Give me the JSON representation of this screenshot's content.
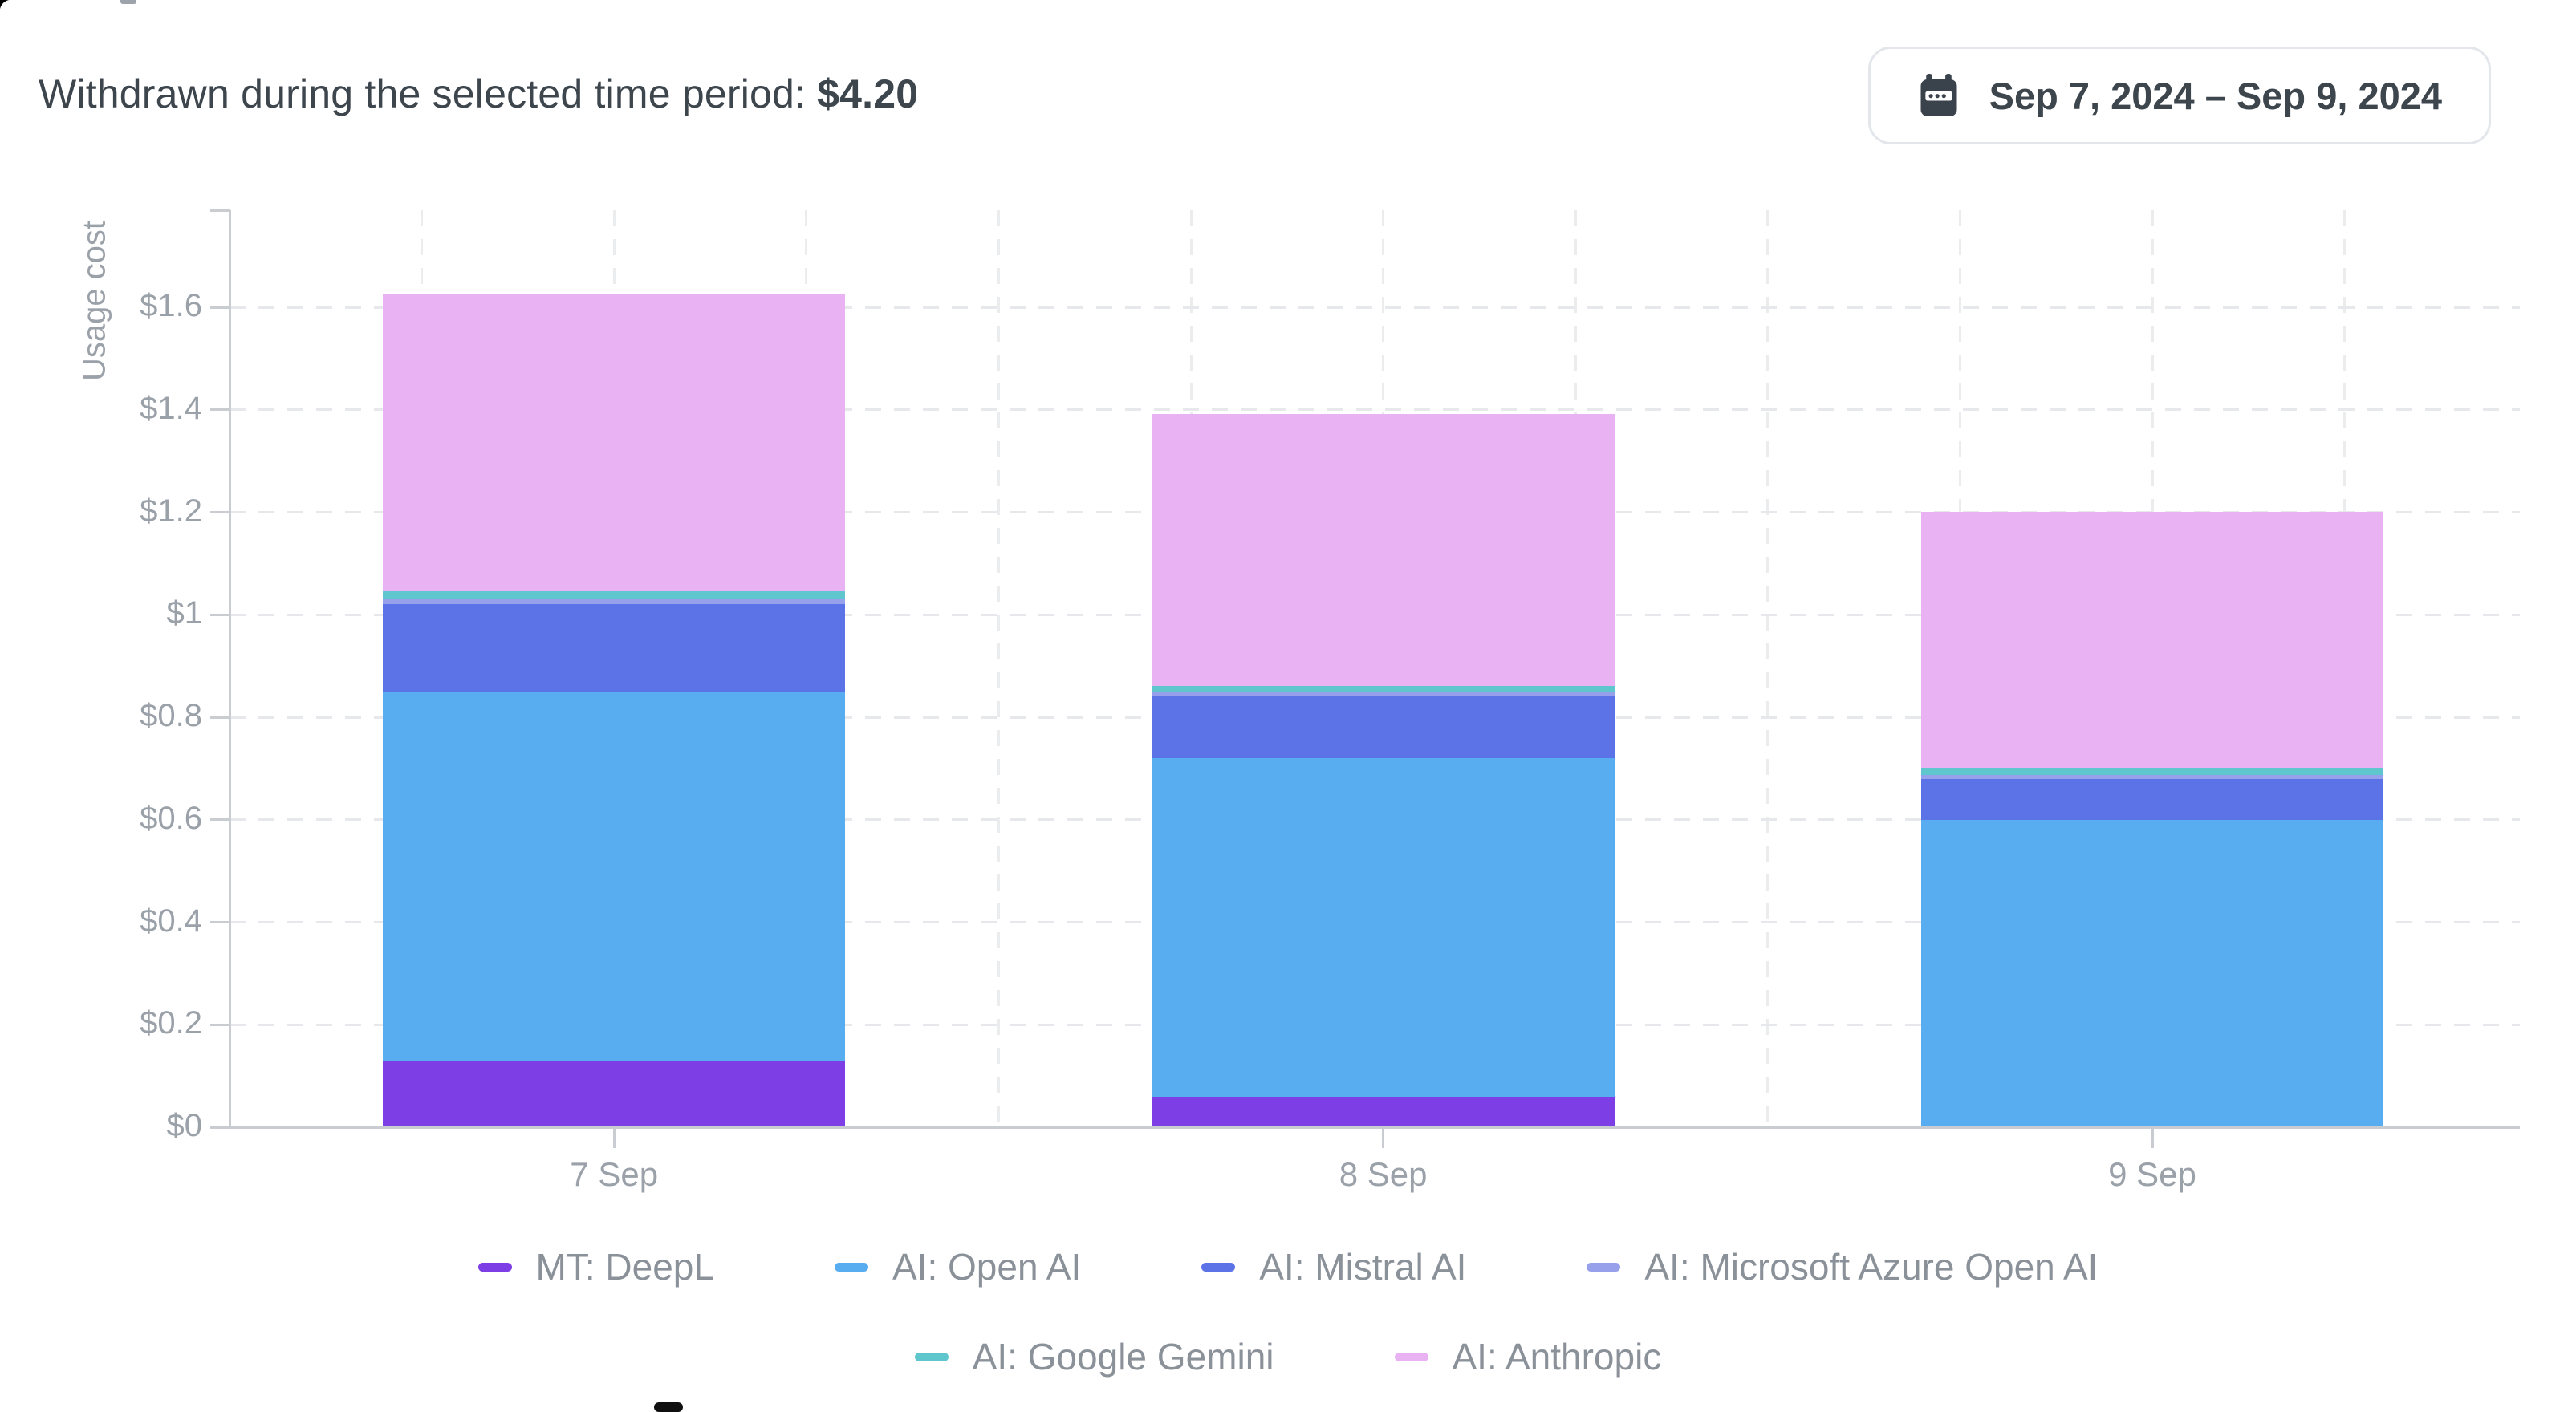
{
  "header": {
    "label": "Withdrawn during the selected time period:",
    "value": "$4.20"
  },
  "date_range": {
    "label": "Sep 7, 2024 – Sep 9, 2024",
    "icon": "calendar-icon"
  },
  "chart_data": {
    "type": "bar",
    "stacked": true,
    "title": "",
    "xlabel": "",
    "ylabel": "Usage cost",
    "categories": [
      "7 Sep",
      "8 Sep",
      "9 Sep"
    ],
    "series": [
      {
        "name": "MT: DeepL",
        "color": "#7d3ee6",
        "values": [
          0.13,
          0.06,
          0
        ]
      },
      {
        "name": "AI: Open AI",
        "color": "#58acf0",
        "values": [
          0.72,
          0.66,
          0.6
        ]
      },
      {
        "name": "AI: Mistral AI",
        "color": "#5b73e6",
        "values": [
          0.17,
          0.12,
          0.08
        ]
      },
      {
        "name": "AI: Microsoft Azure Open AI",
        "color": "#96a0eb",
        "values": [
          0.01,
          0.008,
          0.008
        ]
      },
      {
        "name": "AI: Google Gemini",
        "color": "#5fc6cd",
        "values": [
          0.015,
          0.013,
          0.014
        ]
      },
      {
        "name": "AI: Anthropic",
        "color": "#e9b2f3",
        "values": [
          0.58,
          0.53,
          0.5
        ]
      }
    ],
    "bar_totals": [
      1.62,
      1.39,
      1.2
    ],
    "y_ticks": [
      {
        "value": 0,
        "label": "$0"
      },
      {
        "value": 0.2,
        "label": "$0.2"
      },
      {
        "value": 0.4,
        "label": "$0.4"
      },
      {
        "value": 0.6,
        "label": "$0.6"
      },
      {
        "value": 0.8,
        "label": "$0.8"
      },
      {
        "value": 1,
        "label": "$1"
      },
      {
        "value": 1.2,
        "label": "$1.2"
      },
      {
        "value": 1.4,
        "label": "$1.4"
      },
      {
        "value": 1.6,
        "label": "$1.6"
      }
    ],
    "ylim": [
      0,
      1.79
    ],
    "grid": "dashed",
    "legend_position": "bottom",
    "legend_rows": [
      [
        0,
        1,
        2,
        3
      ],
      [
        4,
        5
      ]
    ],
    "colors": {
      "axis": "#c9cdd2",
      "gridline": "#e6e8eb",
      "tick_text": "#9ba1a9",
      "legend_text": "#8b9199",
      "header_text": "#3d454d"
    }
  }
}
